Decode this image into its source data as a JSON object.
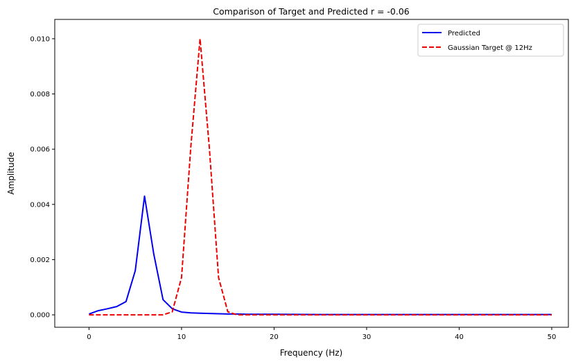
{
  "chart_data": {
    "type": "line",
    "title": "Comparison of Target and Predicted r = -0.06",
    "xlabel": "Frequency (Hz)",
    "ylabel": "Amplitude",
    "xlim": [
      -3.7,
      51.8
    ],
    "ylim": [
      -0.00045,
      0.0107
    ],
    "xticks": [
      0,
      10,
      20,
      30,
      40,
      50
    ],
    "xtick_labels": [
      "0",
      "10",
      "20",
      "30",
      "40",
      "50"
    ],
    "yticks": [
      0,
      0.002,
      0.004,
      0.006,
      0.008,
      0.01
    ],
    "ytick_labels": [
      "0.000",
      "0.002",
      "0.004",
      "0.006",
      "0.008",
      "0.010"
    ],
    "grid": false,
    "legend_position": "top-right",
    "series": [
      {
        "name": "Predicted",
        "color": "#0000ee",
        "style": "solid",
        "x": [
          0,
          1,
          2,
          3,
          4,
          5,
          6,
          7,
          8,
          9,
          10,
          11,
          12,
          13,
          14,
          15,
          16,
          17,
          18,
          19,
          20,
          25,
          30,
          35,
          40,
          45,
          50
        ],
        "y": [
          3e-05,
          0.00015,
          0.00022,
          0.0003,
          0.00048,
          0.0016,
          0.0043,
          0.0022,
          0.00055,
          0.00022,
          0.0001,
          7e-05,
          6e-05,
          5e-05,
          4e-05,
          3e-05,
          3e-05,
          2e-05,
          2e-05,
          2e-05,
          2e-05,
          1e-05,
          1e-05,
          1e-05,
          1e-05,
          1e-05,
          1e-05
        ]
      },
      {
        "name": "Gaussian Target @ 12Hz",
        "color": "#ee0000",
        "style": "dashed",
        "x": [
          0,
          1,
          2,
          3,
          4,
          5,
          6,
          7,
          8,
          9,
          10,
          11,
          12,
          13,
          14,
          15,
          16,
          17,
          18,
          20,
          25,
          30,
          35,
          40,
          45,
          50
        ],
        "y": [
          0,
          0,
          0,
          0,
          0,
          0,
          0,
          0,
          0,
          0.00011,
          0.00135,
          0.00607,
          0.01,
          0.00607,
          0.00135,
          0.00011,
          0,
          0,
          0,
          0,
          0,
          0,
          0,
          0,
          0,
          0
        ]
      }
    ]
  }
}
